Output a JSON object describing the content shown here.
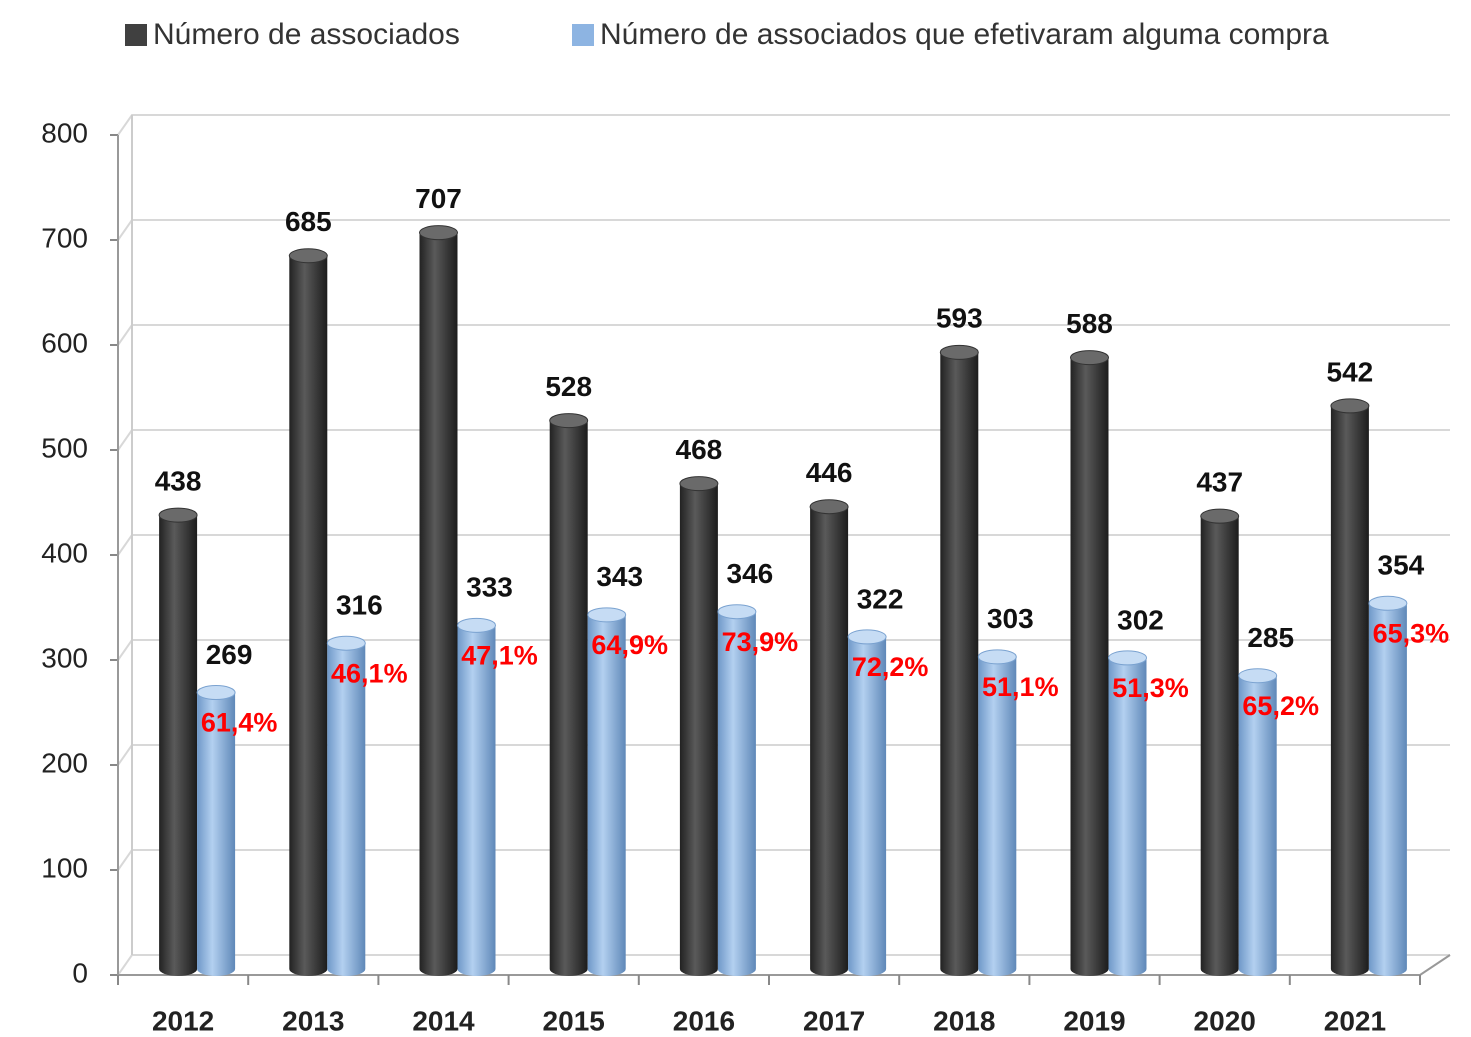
{
  "chart_data": {
    "type": "bar",
    "categories": [
      "2012",
      "2013",
      "2014",
      "2015",
      "2016",
      "2017",
      "2018",
      "2019",
      "2020",
      "2021"
    ],
    "series": [
      {
        "name": "Número de associados",
        "color": "#404040",
        "values": [
          438,
          685,
          707,
          528,
          468,
          446,
          593,
          588,
          437,
          542
        ]
      },
      {
        "name": "Número de associados que efetivaram alguma compra",
        "color": "#8db4e2",
        "values": [
          269,
          316,
          333,
          343,
          346,
          322,
          303,
          302,
          285,
          354
        ]
      }
    ],
    "annotations": {
      "color": "#ff0000",
      "values": [
        61.4,
        46.1,
        47.1,
        64.9,
        73.9,
        72.2,
        51.1,
        51.3,
        65.2,
        65.3
      ],
      "value_labels": [
        "61,4%",
        "46,1%",
        "47,1%",
        "64,9%",
        "73,9%",
        "72,2%",
        "51,1%",
        "51,3%",
        "65,2%",
        "65,3%"
      ]
    },
    "ylim": [
      0,
      800
    ],
    "yticks": [
      0,
      100,
      200,
      300,
      400,
      500,
      600,
      700,
      800
    ],
    "grid": true,
    "legend": "top"
  }
}
